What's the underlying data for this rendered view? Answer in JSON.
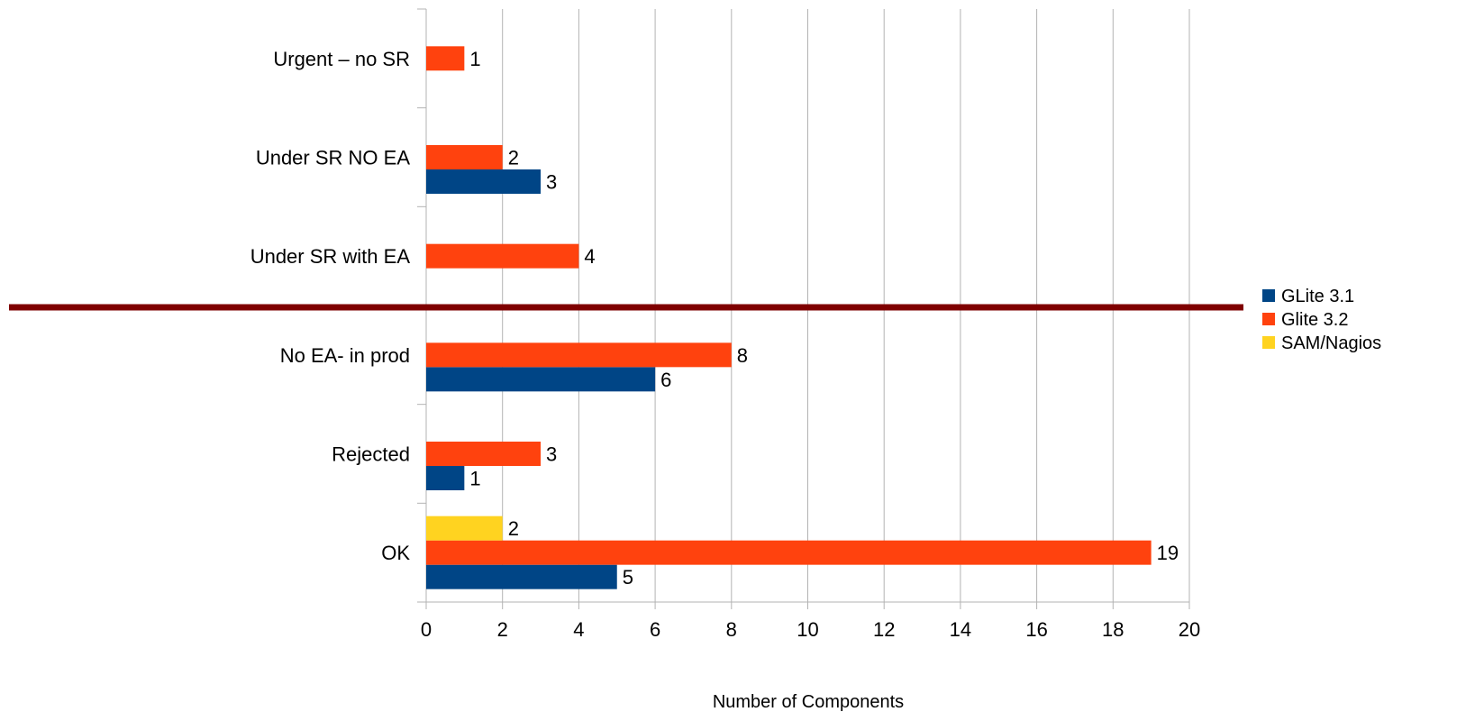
{
  "chart_data": {
    "type": "bar",
    "orientation": "horizontal",
    "categories": [
      "OK",
      "Rejected",
      "No EA- in prod",
      "Under SR with EA",
      "Under SR NO EA",
      "Urgent – no SR"
    ],
    "series": [
      {
        "name": "GLite 3.1",
        "color": "#004586",
        "values": [
          5,
          1,
          6,
          null,
          3,
          null
        ]
      },
      {
        "name": "Glite 3.2",
        "color": "#ff420e",
        "values": [
          19,
          3,
          8,
          4,
          2,
          1
        ]
      },
      {
        "name": "SAM/Nagios",
        "color": "#ffd320",
        "values": [
          2,
          null,
          null,
          null,
          null,
          null
        ]
      }
    ],
    "xlabel": "Number of Components",
    "xlim": [
      0,
      20
    ],
    "xticks": [
      "0",
      "2",
      "4",
      "6",
      "8",
      "10",
      "12",
      "14",
      "16",
      "18",
      "20"
    ],
    "grid": true,
    "legend_position": "right",
    "separator_color": "#7f0000"
  }
}
